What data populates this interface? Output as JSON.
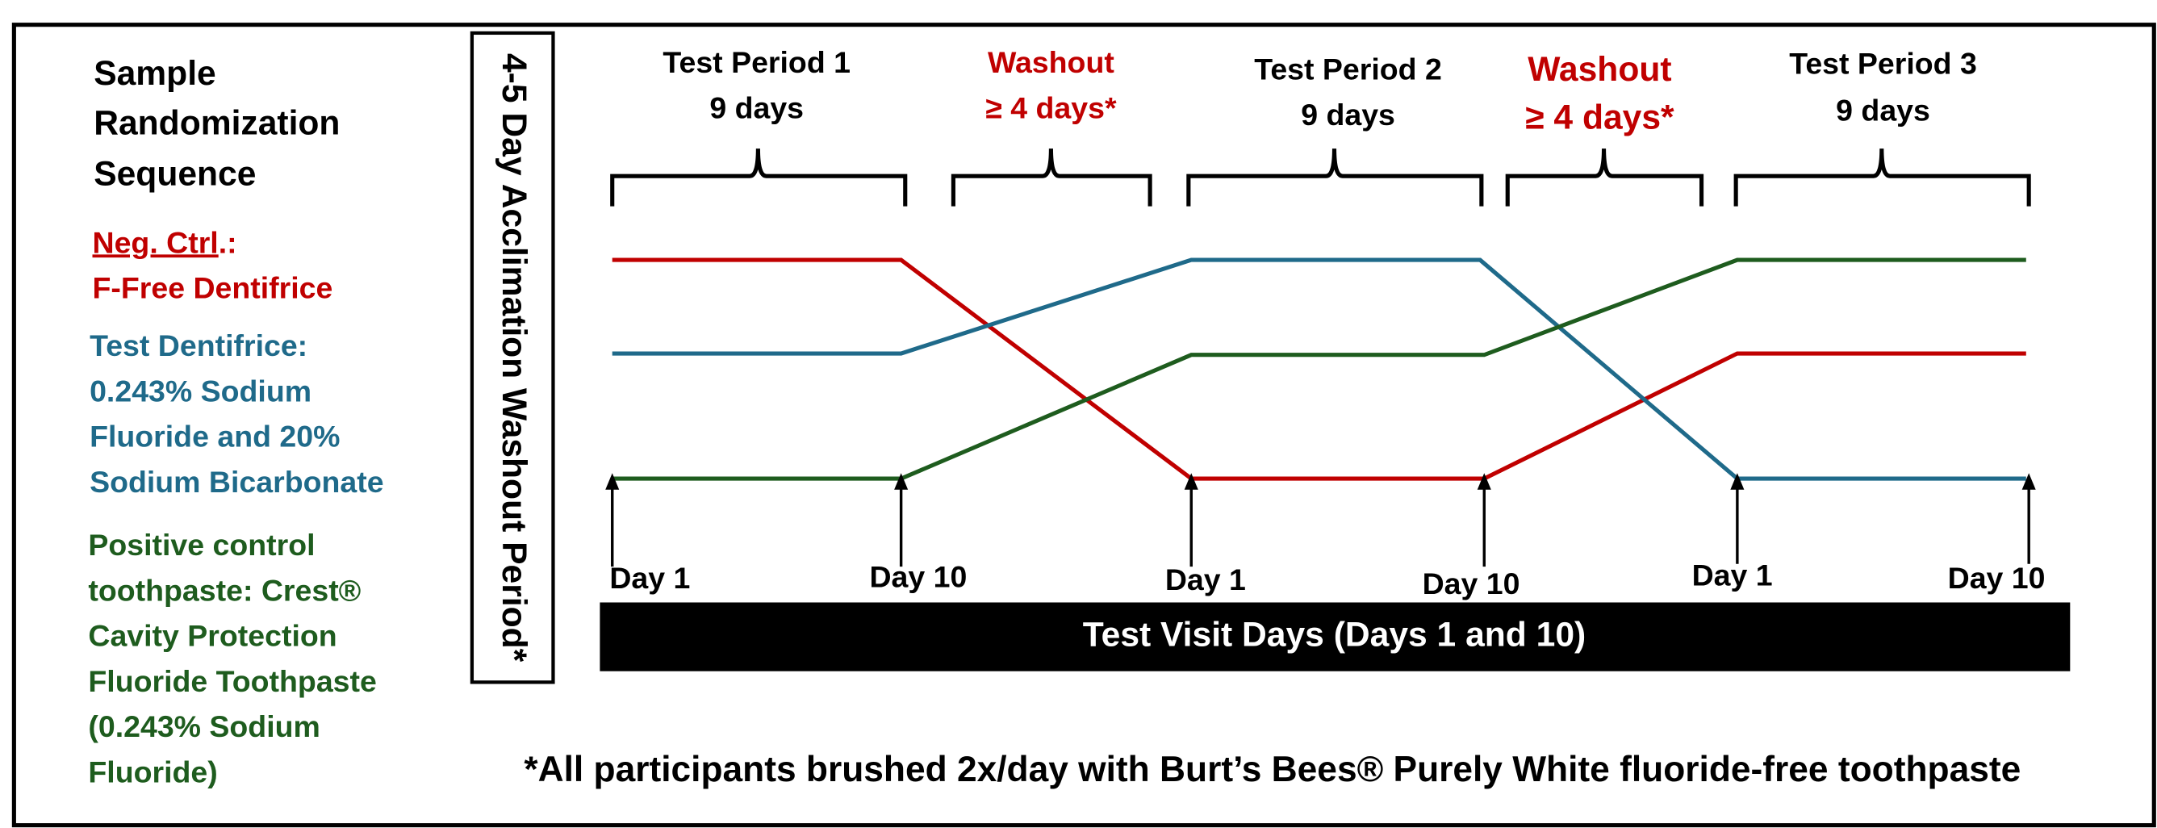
{
  "title_lines": [
    "Sample",
    "Randomization",
    "Sequence"
  ],
  "legend": [
    {
      "heading": "Neg. Ctrl",
      "heading_suffix": ".:",
      "lines": [
        "F-Free Dentifrice"
      ]
    },
    {
      "lines": [
        "Test Dentifrice:",
        "0.243% Sodium",
        "Fluoride and 20%",
        "Sodium Bicarbonate"
      ]
    },
    {
      "lines": [
        "Positive control",
        "toothpaste: Crest®",
        "Cavity Protection",
        "Fluoride Toothpaste",
        "(0.243% Sodium",
        "Fluoride)"
      ]
    }
  ],
  "acclimation": "4-5 Day Acclimation Washout Period*",
  "periods": [
    {
      "lines": [
        "Test Period 1",
        "9 days"
      ]
    },
    {
      "lines": [
        "Washout",
        "≥ 4 days*"
      ]
    },
    {
      "lines": [
        "Test Period 2",
        "9 days"
      ]
    },
    {
      "lines": [
        "Washout",
        "≥ 4 days*"
      ]
    },
    {
      "lines": [
        "Test Period 3",
        "9 days"
      ]
    }
  ],
  "days": [
    "Day 1",
    "Day 10",
    "Day 1",
    "Day 10",
    "Day 1",
    "Day 10"
  ],
  "visit_bar": "Test Visit Days (Days 1 and 10)",
  "footnote": "*All participants brushed 2x/day with Burt’s Bees® Purely White fluoride-free toothpaste"
}
